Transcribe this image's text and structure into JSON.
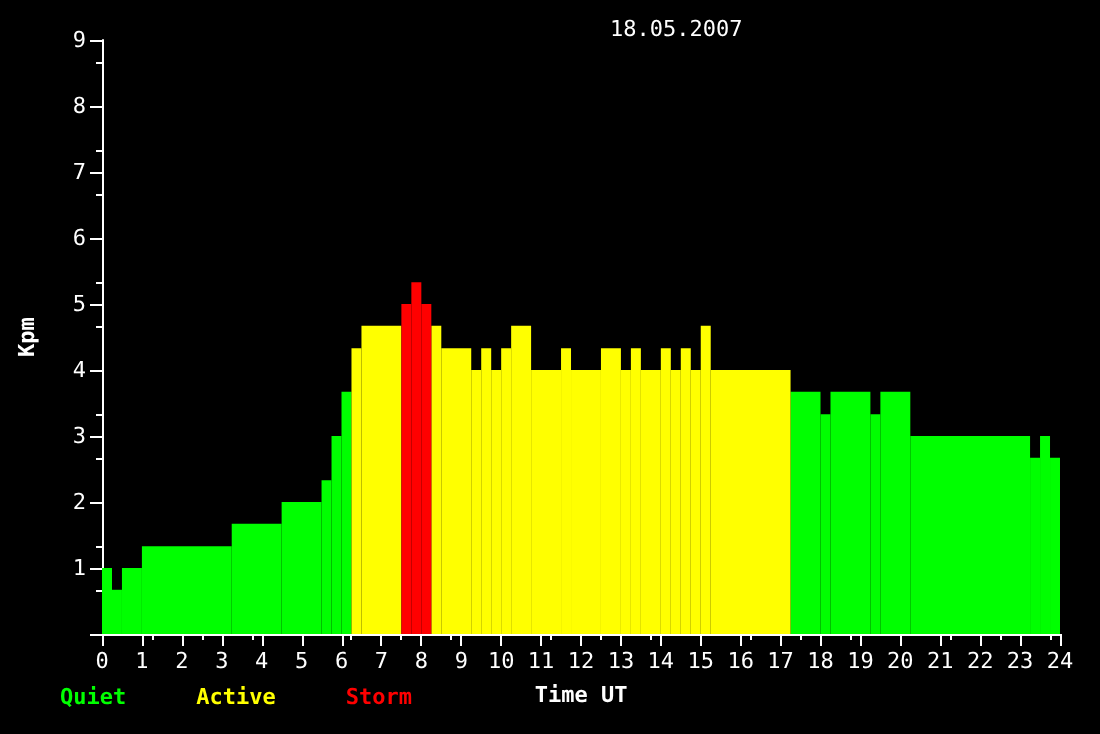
{
  "chart_data": {
    "type": "histogram",
    "title": "18.05.2007",
    "xlabel": "Time UT",
    "ylabel": "Kpm",
    "xlim": [
      0,
      24
    ],
    "xticks": [
      0,
      1,
      2,
      3,
      4,
      5,
      6,
      7,
      8,
      9,
      10,
      11,
      12,
      13,
      14,
      15,
      16,
      17,
      18,
      19,
      20,
      21,
      22,
      23,
      24
    ],
    "ylim": [
      0,
      9
    ],
    "yticks": [
      {
        "value": 0,
        "label": null
      },
      1,
      2,
      3,
      4,
      5,
      6,
      7,
      8,
      9
    ],
    "grid": false,
    "legend": "bottom left",
    "bins": [
      0,
      0.25,
      0.5,
      1,
      3.25,
      4.5,
      5.5,
      5.75,
      6,
      6.25,
      6.5,
      7.5,
      7.75,
      8,
      8.25,
      8.5,
      9.25,
      9.5,
      9.75,
      10,
      10.25,
      10.75,
      11.5,
      11.75,
      12.5,
      13,
      13.25,
      13.5,
      14,
      14.25,
      14.5,
      14.75,
      15,
      15.25,
      17.25,
      18,
      18.25,
      19.25,
      19.5,
      20.25,
      23.25,
      23.5,
      23.75,
      24
    ],
    "series": [
      {
        "name": "Quiet",
        "color": "#00ff00",
        "values": [
          1,
          0.67,
          1,
          1.33,
          1.67,
          2,
          2.33,
          3,
          3.67,
          null,
          null,
          null,
          null,
          null,
          null,
          null,
          null,
          null,
          null,
          null,
          null,
          null,
          null,
          null,
          null,
          null,
          null,
          null,
          null,
          null,
          null,
          null,
          null,
          null,
          3.67,
          3.33,
          3.67,
          3.33,
          3.67,
          3,
          2.67,
          3,
          2.67
        ]
      },
      {
        "name": "Active",
        "color": "#ffff00",
        "values": [
          null,
          null,
          null,
          null,
          null,
          null,
          null,
          null,
          null,
          4.33,
          4.67,
          null,
          null,
          null,
          4.67,
          4.33,
          4,
          4.33,
          4,
          4.33,
          4.67,
          4,
          4.33,
          4,
          4.33,
          4,
          4.33,
          4,
          4.33,
          4,
          4.33,
          4,
          4.67,
          4,
          null,
          null,
          null,
          null,
          null,
          null,
          null,
          null,
          null
        ]
      },
      {
        "name": "Storm",
        "color": "#ff0000",
        "values": [
          null,
          null,
          null,
          null,
          null,
          null,
          null,
          null,
          null,
          null,
          null,
          5,
          5.33,
          5,
          null,
          null,
          null,
          null,
          null,
          null,
          null,
          null,
          null,
          null,
          null,
          null,
          null,
          null,
          null,
          null,
          null,
          null,
          null,
          null,
          null,
          null,
          null,
          null,
          null,
          null,
          null,
          null,
          null
        ]
      }
    ]
  }
}
